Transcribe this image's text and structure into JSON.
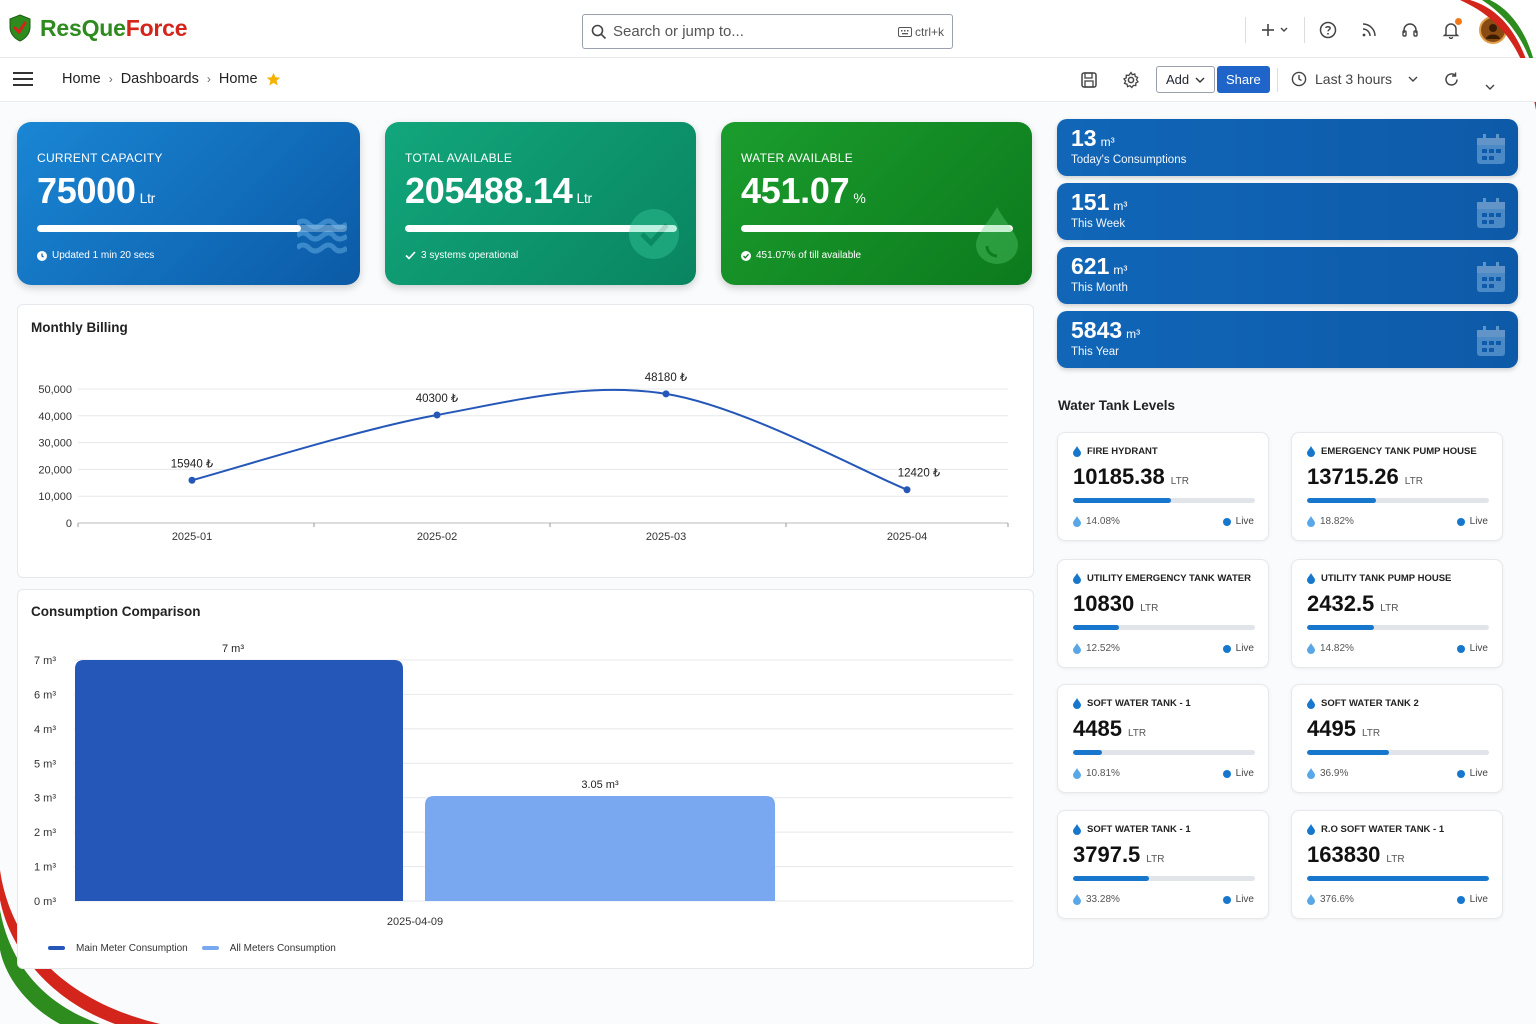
{
  "app": {
    "brand_a": "ResQue",
    "brand_b": "Force"
  },
  "search": {
    "placeholder": "Search or jump to...",
    "shortcut": "ctrl+k"
  },
  "breadcrumb": {
    "items": [
      "Home",
      "Dashboards",
      "Home"
    ]
  },
  "toolbar": {
    "add_label": "Add",
    "share_label": "Share",
    "time_range": "Last 3 hours"
  },
  "kpis": [
    {
      "label": "CURRENT CAPACITY",
      "value": "75000",
      "unit": "Ltr",
      "footer": "Updated 1 min 20 secs",
      "progress": 0.85,
      "color_start": "#1a86d4",
      "color_end": "#0b5aa6"
    },
    {
      "label": "TOTAL AVAILABLE",
      "value": "205488.14",
      "unit": "Ltr",
      "footer": "3 systems operational",
      "progress": 1.0,
      "color_start": "#12a67c",
      "color_end": "#098560"
    },
    {
      "label": "WATER AVAILABLE",
      "value": "451.07",
      "unit": "%",
      "footer": "451.07% of till available",
      "progress": 1.0,
      "color_start": "#1b9d2d",
      "color_end": "#0c7a1d"
    }
  ],
  "consumption_stats": [
    {
      "value": "13",
      "unit": "m³",
      "label": "Today's Consumptions"
    },
    {
      "value": "151",
      "unit": "m³",
      "label": "This Week"
    },
    {
      "value": "621",
      "unit": "m³",
      "label": "This Month"
    },
    {
      "value": "5843",
      "unit": "m³",
      "label": "This Year"
    }
  ],
  "monthly_billing": {
    "title": "Monthly Billing"
  },
  "consumption_comparison": {
    "title": "Consumption Comparison"
  },
  "water_tank_levels": {
    "title": "Water Tank Levels",
    "live_label": "Live",
    "tanks": [
      {
        "name": "FIRE HYDRANT",
        "value": "10185.38",
        "unit": "LTR",
        "percent": "14.08%",
        "fill": 0.54
      },
      {
        "name": "EMERGENCY TANK PUMP HOUSE",
        "value": "13715.26",
        "unit": "LTR",
        "percent": "18.82%",
        "fill": 0.38
      },
      {
        "name": "UTILITY EMERGENCY TANK WATER",
        "value": "10830",
        "unit": "LTR",
        "percent": "12.52%",
        "fill": 0.25
      },
      {
        "name": "UTILITY TANK PUMP HOUSE",
        "value": "2432.5",
        "unit": "LTR",
        "percent": "14.82%",
        "fill": 0.37
      },
      {
        "name": "SOFT WATER TANK - 1",
        "value": "4485",
        "unit": "LTR",
        "percent": "10.81%",
        "fill": 0.16
      },
      {
        "name": "SOFT WATER TANK 2",
        "value": "4495",
        "unit": "LTR",
        "percent": "36.9%",
        "fill": 0.45
      },
      {
        "name": "SOFT WATER TANK - 1",
        "value": "3797.5",
        "unit": "LTR",
        "percent": "33.28%",
        "fill": 0.42
      },
      {
        "name": "R.O SOFT WATER TANK - 1",
        "value": "163830",
        "unit": "LTR",
        "percent": "376.6%",
        "fill": 1.0
      }
    ]
  },
  "chart_data": [
    {
      "type": "line",
      "title": "Monthly Billing",
      "categories": [
        "2025-01",
        "2025-02",
        "2025-03",
        "2025-04"
      ],
      "series": [
        {
          "values": [
            15940,
            40300,
            48180,
            12420
          ]
        }
      ],
      "data_labels": [
        "15940 ₺",
        "40300 ₺",
        "48180 ₺",
        "12420 ₺"
      ],
      "y_ticks": [
        "0",
        "10,000",
        "20,000",
        "30,000",
        "40,000",
        "50,000"
      ],
      "ylim": [
        0,
        50000
      ],
      "grid": true,
      "color": "#2557b8"
    },
    {
      "type": "bar",
      "title": "Consumption Comparison",
      "categories": [
        "2025-04-09"
      ],
      "series": [
        {
          "name": "Main Meter Consumption",
          "values": [
            7
          ],
          "color": "#2557b8"
        },
        {
          "name": "All Meters Consumption",
          "values": [
            3.05
          ],
          "color": "#7aa8f0"
        }
      ],
      "data_labels": [
        "7 m³",
        "3.05 m³"
      ],
      "y_ticks": [
        "0 m³",
        "1 m³",
        "2 m³",
        "3 m³",
        "5 m³",
        "4 m³",
        "6 m³",
        "7 m³"
      ],
      "ylim": [
        0,
        7
      ],
      "legend": "bottom-left"
    }
  ]
}
